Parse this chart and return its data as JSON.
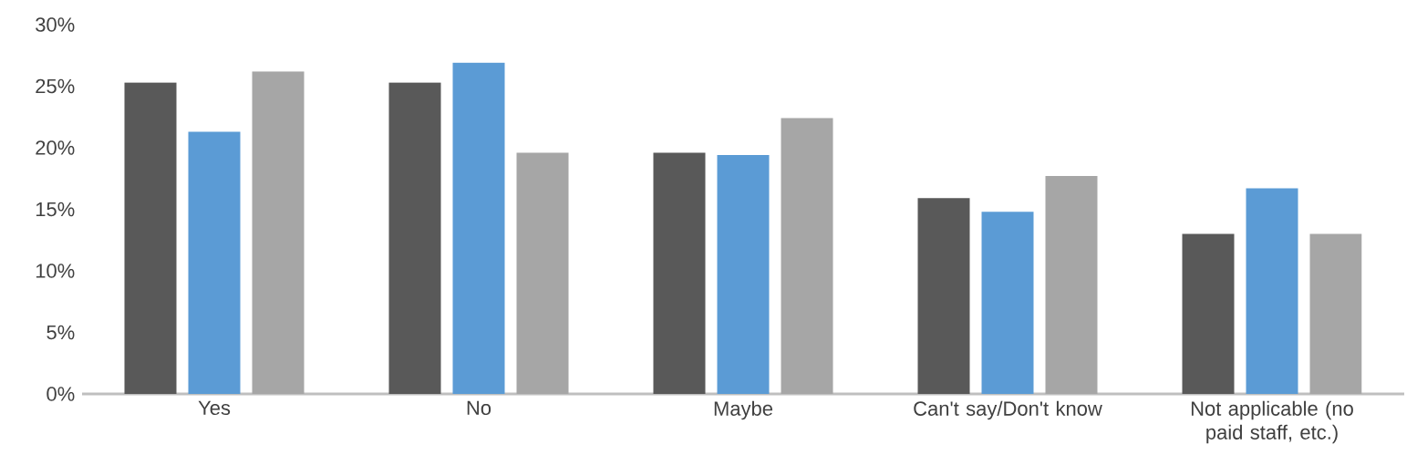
{
  "chart_data": {
    "type": "bar",
    "categories": [
      "Yes",
      "No",
      "Maybe",
      "Can't say/Don't know",
      "Not applicable (no paid staff, etc.)"
    ],
    "series": [
      {
        "color": "#595959",
        "values": [
          25.3,
          25.3,
          19.6,
          15.9,
          13.0
        ]
      },
      {
        "color": "#5b9bd5",
        "values": [
          21.3,
          26.9,
          19.4,
          14.8,
          16.7
        ]
      },
      {
        "color": "#a6a6a6",
        "values": [
          26.2,
          19.6,
          22.4,
          17.7,
          13.0
        ]
      }
    ],
    "ylim": [
      0,
      30
    ],
    "yticks": [
      {
        "value": 0,
        "label": "0%"
      },
      {
        "value": 5,
        "label": "5%"
      },
      {
        "value": 10,
        "label": "10%"
      },
      {
        "value": 15,
        "label": "15%"
      },
      {
        "value": 20,
        "label": "20%"
      },
      {
        "value": 25,
        "label": "25%"
      },
      {
        "value": 30,
        "label": "30%"
      }
    ],
    "grid": false
  }
}
